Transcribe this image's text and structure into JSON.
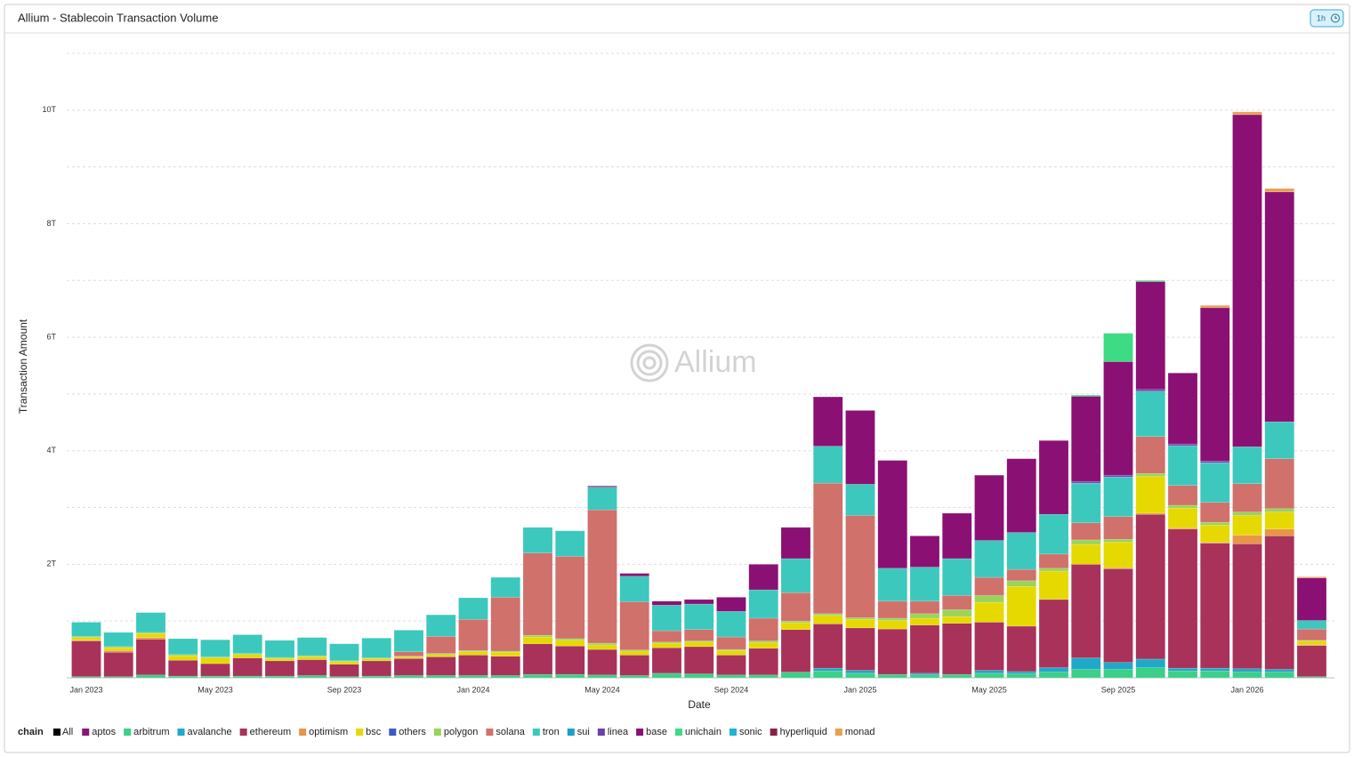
{
  "chart_data": {
    "type": "stacked-bar",
    "title": "Allium - Stablecoin Transaction Volume",
    "badge": "1h",
    "watermark": "Allium",
    "xlabel": "Date",
    "ylabel": "Transaction Amount",
    "categories": [
      "Jan 2023",
      null,
      null,
      null,
      "May 2023",
      null,
      null,
      null,
      "Sep 2023",
      null,
      null,
      null,
      "Jan 2024",
      null,
      null,
      null,
      "May 2024",
      null,
      null,
      null,
      "Sep 2024",
      null,
      null,
      null,
      "Jan 2025",
      null,
      null,
      null,
      "May 2025",
      null,
      null,
      null,
      "Sep 2025",
      null,
      null,
      null,
      "Jan 2026",
      null,
      null
    ],
    "ylim": [
      0,
      11
    ],
    "yticks": [
      {
        "value": 2,
        "label": "2T"
      },
      {
        "value": 4,
        "label": "4T"
      },
      {
        "value": 6,
        "label": "6T"
      },
      {
        "value": 8,
        "label": "8T"
      },
      {
        "value": 10,
        "label": "10T"
      }
    ],
    "y_minor_ticks": [
      1,
      3,
      5,
      7,
      9,
      11
    ],
    "grid": true,
    "legend": {
      "title": "chain",
      "all": "All"
    },
    "series": [
      {
        "name": "aptos",
        "color": "#8a1474",
        "values": [
          0,
          0,
          0,
          0,
          0,
          0,
          0,
          0,
          0,
          0,
          0,
          0,
          0,
          0,
          0,
          0,
          0,
          0,
          0,
          0,
          0,
          0,
          0,
          0,
          0,
          0,
          0,
          0,
          0,
          0,
          0,
          0,
          0,
          0,
          0,
          0,
          0,
          0,
          0
        ]
      },
      {
        "name": "arbitrum",
        "color": "#3ccf87",
        "values": [
          0.02,
          0.02,
          0.05,
          0.03,
          0.03,
          0.03,
          0.03,
          0.04,
          0.02,
          0.03,
          0.04,
          0.04,
          0.04,
          0.04,
          0.06,
          0.06,
          0.05,
          0.04,
          0.08,
          0.07,
          0.05,
          0.05,
          0.1,
          0.12,
          0.08,
          0.06,
          0.05,
          0.06,
          0.08,
          0.07,
          0.1,
          0.15,
          0.15,
          0.18,
          0.12,
          0.12,
          0.1,
          0.1,
          0.02
        ]
      },
      {
        "name": "avalanche",
        "color": "#1fa9c9",
        "values": [
          0,
          0,
          0,
          0,
          0,
          0,
          0,
          0,
          0,
          0,
          0,
          0,
          0,
          0,
          0,
          0,
          0,
          0,
          0,
          0,
          0,
          0,
          0,
          0.05,
          0.05,
          0,
          0.03,
          0,
          0.05,
          0.04,
          0.08,
          0.2,
          0.12,
          0.15,
          0.05,
          0.05,
          0.06,
          0.05,
          0
        ]
      },
      {
        "name": "ethereum",
        "color": "#a8325a",
        "values": [
          0.63,
          0.43,
          0.63,
          0.28,
          0.22,
          0.32,
          0.27,
          0.28,
          0.22,
          0.27,
          0.3,
          0.33,
          0.36,
          0.34,
          0.54,
          0.5,
          0.45,
          0.36,
          0.45,
          0.48,
          0.35,
          0.47,
          0.75,
          0.78,
          0.75,
          0.8,
          0.85,
          0.9,
          0.85,
          0.8,
          1.2,
          1.65,
          1.65,
          2.55,
          2.45,
          2.2,
          2.2,
          2.35,
          0.55
        ]
      },
      {
        "name": "optimism",
        "color": "#e8954a",
        "values": [
          0.01,
          0.03,
          0.03,
          0,
          0,
          0,
          0,
          0,
          0,
          0,
          0,
          0,
          0,
          0,
          0,
          0,
          0,
          0,
          0,
          0,
          0,
          0,
          0,
          0,
          0,
          0,
          0,
          0,
          0,
          0,
          0,
          0,
          0.02,
          0.02,
          0.02,
          0.02,
          0.15,
          0.12,
          0.01
        ]
      },
      {
        "name": "bsc",
        "color": "#e6d900",
        "values": [
          0.05,
          0.05,
          0.07,
          0.08,
          0.1,
          0.06,
          0.04,
          0.05,
          0.05,
          0.04,
          0.03,
          0.04,
          0.06,
          0.07,
          0.12,
          0.1,
          0.08,
          0.07,
          0.08,
          0.08,
          0.08,
          0.1,
          0.12,
          0.15,
          0.15,
          0.15,
          0.12,
          0.12,
          0.35,
          0.7,
          0.5,
          0.35,
          0.45,
          0.65,
          0.35,
          0.3,
          0.35,
          0.3,
          0.07
        ]
      },
      {
        "name": "others",
        "color": "#3a5bc7",
        "values": [
          0,
          0,
          0,
          0,
          0,
          0,
          0,
          0,
          0,
          0,
          0,
          0,
          0,
          0,
          0,
          0,
          0,
          0,
          0,
          0,
          0,
          0,
          0,
          0,
          0,
          0,
          0,
          0,
          0,
          0,
          0,
          0,
          0,
          0,
          0,
          0,
          0,
          0,
          0
        ]
      },
      {
        "name": "polygon",
        "color": "#9ad45a",
        "values": [
          0.02,
          0.02,
          0.02,
          0.02,
          0.02,
          0.02,
          0.02,
          0.02,
          0.01,
          0.01,
          0.01,
          0.02,
          0.02,
          0.02,
          0.03,
          0.03,
          0.03,
          0.02,
          0.02,
          0.02,
          0.02,
          0.03,
          0.03,
          0.03,
          0.03,
          0.04,
          0.08,
          0.12,
          0.12,
          0.1,
          0.05,
          0.08,
          0.05,
          0.05,
          0.05,
          0.05,
          0.06,
          0.06,
          0.01
        ]
      },
      {
        "name": "solana",
        "color": "#d0716c",
        "values": [
          0,
          0,
          0,
          0,
          0,
          0,
          0,
          0,
          0,
          0,
          0.08,
          0.3,
          0.55,
          0.95,
          1.45,
          1.45,
          2.35,
          0.85,
          0.2,
          0.2,
          0.22,
          0.4,
          0.5,
          2.3,
          1.8,
          0.3,
          0.22,
          0.25,
          0.32,
          0.2,
          0.25,
          0.3,
          0.4,
          0.65,
          0.35,
          0.35,
          0.5,
          0.88,
          0.2
        ]
      },
      {
        "name": "tron",
        "color": "#3cc8bd",
        "values": [
          0.25,
          0.25,
          0.35,
          0.28,
          0.3,
          0.33,
          0.3,
          0.32,
          0.3,
          0.35,
          0.38,
          0.38,
          0.38,
          0.35,
          0.45,
          0.45,
          0.4,
          0.45,
          0.45,
          0.45,
          0.45,
          0.5,
          0.6,
          0.65,
          0.55,
          0.58,
          0.6,
          0.65,
          0.65,
          0.65,
          0.7,
          0.7,
          0.7,
          0.8,
          0.7,
          0.7,
          0.65,
          0.65,
          0.15
        ]
      },
      {
        "name": "sui",
        "color": "#1a9fc9",
        "values": [
          0,
          0,
          0,
          0,
          0,
          0,
          0,
          0,
          0,
          0,
          0,
          0,
          0,
          0,
          0,
          0,
          0,
          0,
          0,
          0,
          0,
          0,
          0,
          0,
          0,
          0,
          0,
          0,
          0,
          0,
          0,
          0,
          0,
          0,
          0,
          0,
          0,
          0,
          0
        ]
      },
      {
        "name": "linea",
        "color": "#6a3fb0",
        "values": [
          0,
          0,
          0,
          0,
          0,
          0,
          0,
          0,
          0,
          0,
          0,
          0,
          0,
          0,
          0,
          0,
          0,
          0,
          0,
          0,
          0,
          0,
          0,
          0,
          0,
          0,
          0,
          0,
          0,
          0,
          0,
          0.03,
          0.03,
          0.03,
          0.03,
          0.03,
          0,
          0,
          0
        ]
      },
      {
        "name": "base",
        "color": "#8a1173",
        "values": [
          0,
          0,
          0,
          0,
          0,
          0,
          0,
          0,
          0,
          0,
          0,
          0,
          0,
          0,
          0,
          0,
          0.02,
          0.05,
          0.07,
          0.08,
          0.25,
          0.45,
          0.55,
          0.87,
          1.3,
          1.9,
          0.55,
          0.8,
          1.15,
          1.3,
          1.3,
          1.5,
          2.0,
          1.9,
          1.25,
          2.7,
          5.85,
          4.05,
          0.75
        ]
      },
      {
        "name": "unichain",
        "color": "#3ddc84",
        "values": [
          0,
          0,
          0,
          0,
          0,
          0,
          0,
          0,
          0,
          0,
          0,
          0,
          0,
          0,
          0,
          0,
          0,
          0,
          0,
          0,
          0,
          0,
          0,
          0,
          0,
          0,
          0,
          0,
          0,
          0,
          0,
          0.02,
          0.5,
          0.02,
          0,
          0,
          0,
          0,
          0
        ]
      },
      {
        "name": "sonic",
        "color": "#1fb5d0",
        "values": [
          0,
          0,
          0,
          0,
          0,
          0,
          0,
          0,
          0,
          0,
          0,
          0,
          0,
          0,
          0,
          0,
          0,
          0,
          0,
          0,
          0,
          0,
          0,
          0,
          0,
          0,
          0,
          0,
          0,
          0,
          0,
          0,
          0,
          0,
          0,
          0,
          0,
          0,
          0
        ]
      },
      {
        "name": "hyperliquid",
        "color": "#8b2244",
        "values": [
          0,
          0,
          0,
          0,
          0,
          0,
          0,
          0,
          0,
          0,
          0,
          0,
          0,
          0,
          0,
          0,
          0,
          0,
          0,
          0,
          0,
          0,
          0,
          0,
          0,
          0,
          0,
          0,
          0,
          0,
          0,
          0,
          0,
          0,
          0,
          0,
          0,
          0,
          0
        ]
      },
      {
        "name": "monad",
        "color": "#e8a050",
        "values": [
          0,
          0,
          0,
          0,
          0,
          0,
          0,
          0,
          0,
          0,
          0,
          0,
          0,
          0,
          0,
          0,
          0,
          0,
          0,
          0,
          0,
          0,
          0,
          0,
          0,
          0,
          0,
          0,
          0,
          0,
          0,
          0,
          0,
          0,
          0,
          0.04,
          0.05,
          0.06,
          0.02
        ]
      }
    ]
  }
}
